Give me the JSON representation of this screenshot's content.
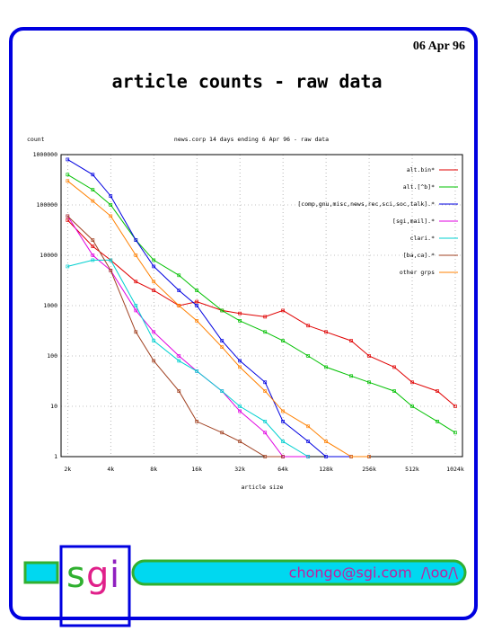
{
  "date": "06 Apr 96",
  "title": "article counts - raw data",
  "chart_data": {
    "type": "line",
    "title": "news.corp 14 days ending 6 Apr 96 - raw data",
    "y_label": "count",
    "x_label": "article size",
    "xscale": "log",
    "yscale": "log",
    "grid": true,
    "legend": "upper right",
    "xlim": [
      1.8,
      1150
    ],
    "ylim": [
      1,
      1000000
    ],
    "xticks": [
      {
        "value": 2,
        "label": "2k"
      },
      {
        "value": 4,
        "label": "4k"
      },
      {
        "value": 8,
        "label": "8k"
      },
      {
        "value": 16,
        "label": "16k"
      },
      {
        "value": 32,
        "label": "32k"
      },
      {
        "value": 64,
        "label": "64k"
      },
      {
        "value": 128,
        "label": "128k"
      },
      {
        "value": 256,
        "label": "256k"
      },
      {
        "value": 512,
        "label": "512k"
      },
      {
        "value": 1024,
        "label": "1024k"
      }
    ],
    "yticks": [
      1,
      10,
      100,
      1000,
      10000,
      100000,
      1000000
    ],
    "x": [
      2,
      3,
      4,
      6,
      8,
      12,
      16,
      24,
      32,
      48,
      64,
      96,
      128,
      192,
      256,
      384,
      512,
      768,
      1024
    ],
    "series": [
      {
        "name": "alt.bin*",
        "color": "#e00000",
        "values": [
          50000,
          15000,
          8000,
          3000,
          2000,
          1000,
          1200,
          800,
          700,
          600,
          800,
          400,
          300,
          200,
          100,
          60,
          30,
          20,
          10
        ]
      },
      {
        "name": "alt.[^b]*",
        "color": "#00c000",
        "values": [
          400000,
          200000,
          100000,
          20000,
          8000,
          4000,
          2000,
          800,
          500,
          300,
          200,
          100,
          60,
          40,
          30,
          20,
          10,
          5,
          3
        ]
      },
      {
        "name": "[comp,gnu,misc,news,rec,sci,soc,talk].*",
        "color": "#0000e0",
        "values": [
          800000,
          400000,
          150000,
          20000,
          6000,
          2000,
          1000,
          200,
          80,
          30,
          5,
          2,
          1,
          1,
          1,
          null,
          null,
          null,
          null
        ]
      },
      {
        "name": "[sgi,mail].*",
        "color": "#e000e0",
        "values": [
          60000,
          10000,
          5000,
          800,
          300,
          100,
          50,
          20,
          8,
          3,
          1,
          1,
          null,
          null,
          null,
          null,
          null,
          null,
          null
        ]
      },
      {
        "name": "clari.*",
        "color": "#00d0d0",
        "values": [
          6000,
          8000,
          8000,
          1000,
          200,
          80,
          50,
          20,
          10,
          5,
          2,
          1,
          null,
          null,
          null,
          null,
          null,
          null,
          null
        ]
      },
      {
        "name": "[ba,ca].*",
        "color": "#a04020",
        "values": [
          60000,
          20000,
          5000,
          300,
          80,
          20,
          5,
          3,
          2,
          1,
          1,
          null,
          null,
          null,
          null,
          null,
          null,
          null,
          null
        ]
      },
      {
        "name": "other grps",
        "color": "#ff8000",
        "values": [
          300000,
          120000,
          60000,
          10000,
          3000,
          1000,
          500,
          150,
          60,
          20,
          8,
          4,
          2,
          1,
          1,
          null,
          null,
          null,
          null
        ]
      }
    ]
  },
  "footer": {
    "logo": [
      "s",
      "g",
      "i"
    ],
    "contact": "chongo@sgi.com  /\\oo/\\"
  }
}
